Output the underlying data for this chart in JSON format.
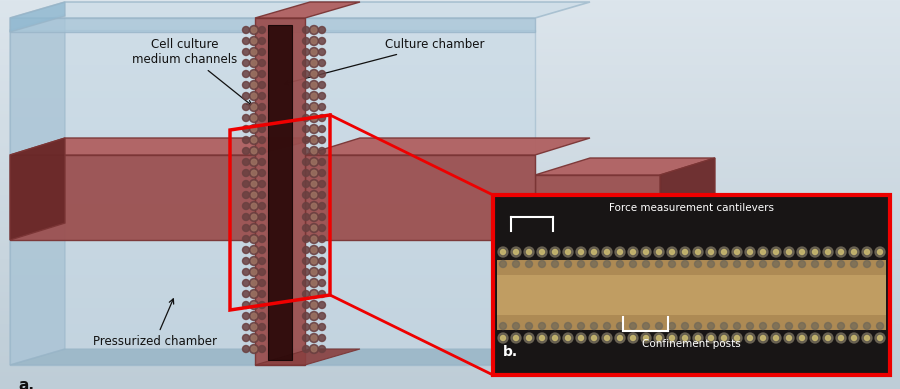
{
  "fig_width": 9.0,
  "fig_height": 3.89,
  "label_a": "a.",
  "label_b": "b.",
  "annotation_cell_culture": "Cell culture\nmedium channels",
  "annotation_culture_chamber": "Culture chamber",
  "annotation_pressurized": "Pressurized chamber",
  "annotation_force": "Force measurement cantilevers",
  "annotation_confinement": "Confinement posts",
  "bg_top_color": "#dce5ec",
  "bg_bottom_color": "#c8d4dc",
  "glass_face_color": "#ccdde8",
  "glass_face_edge": "#99b5c8",
  "glass_side_color": "#a8c5d8",
  "glass_btm_color": "#90b8d0",
  "chip_front_color": "#9b5050",
  "chip_top_color": "#b06060",
  "chip_dark_color": "#7a3535",
  "chip_darker_color": "#6a2828",
  "culture_color": "#2a0808",
  "post_outer_color": "#6a4040",
  "post_inner_color": "#9a7060",
  "inset_bg": "#181515",
  "inset_gel_color": "#c8a060",
  "inset_dark_color": "#111010",
  "inset_post_outer": "#706858",
  "inset_post_inner": "#c8b870",
  "red_color": "#ee0000",
  "arrow_color": "#111111",
  "text_color": "#111111",
  "white_color": "#ffffff"
}
